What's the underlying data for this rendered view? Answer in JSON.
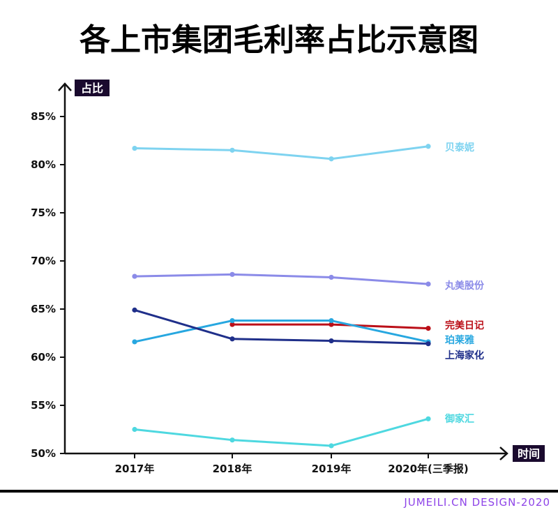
{
  "chart_data": {
    "type": "line",
    "title": "各上市集团毛利率占比示意图",
    "ylabel": "占比",
    "xlabel": "时间",
    "categories": [
      "2017年",
      "2018年",
      "2019年",
      "2020年(三季报)"
    ],
    "ylim": [
      50,
      87
    ],
    "yticks": [
      "85%",
      "80%",
      "75%",
      "70%",
      "65%",
      "60%",
      "55%",
      "50%"
    ],
    "ytick_values": [
      85,
      80,
      75,
      70,
      65,
      60,
      55,
      50
    ],
    "series": [
      {
        "name": "贝泰妮",
        "color": "#7ed3f0",
        "values": [
          81.7,
          81.5,
          80.6,
          81.9
        ]
      },
      {
        "name": "丸美股份",
        "color": "#8b8be8",
        "values": [
          68.4,
          68.6,
          68.3,
          67.6
        ]
      },
      {
        "name": "完美日记",
        "color": "#bb0f18",
        "values": [
          null,
          63.4,
          63.4,
          63.0
        ]
      },
      {
        "name": "珀莱雅",
        "color": "#27a7e0",
        "values": [
          61.6,
          63.8,
          63.8,
          61.6
        ]
      },
      {
        "name": "上海家化",
        "color": "#1f2f8a",
        "values": [
          64.9,
          61.9,
          61.7,
          61.4
        ]
      },
      {
        "name": "御家汇",
        "color": "#4ed8e0",
        "values": [
          52.5,
          51.4,
          50.8,
          53.6
        ]
      }
    ]
  },
  "footer_text": "JUMEILI.CN DESIGN-2020",
  "colors": {
    "axis": "#111111",
    "label_box": "#1a0a2e",
    "label_box_text": "#ffffff",
    "footer": "#8e44e8",
    "footer_rule": "#000000"
  }
}
